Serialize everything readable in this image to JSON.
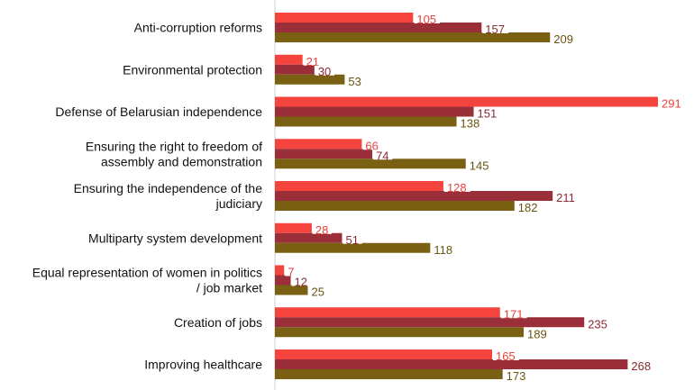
{
  "chart_data": {
    "type": "bar",
    "orientation": "horizontal",
    "categories": [
      [
        "Anti-corruption reforms"
      ],
      [
        "Environmental protection"
      ],
      [
        "Defense of Belarusian independence"
      ],
      [
        "Ensuring the right to freedom of",
        "assembly and demonstration"
      ],
      [
        "Ensuring the independence of the",
        "judiciary"
      ],
      [
        "Multiparty system development"
      ],
      [
        "Equal representation of women in politics",
        "/ job market"
      ],
      [
        "Creation of jobs"
      ],
      [
        "Improving healthcare"
      ]
    ],
    "series": [
      {
        "color": "#f5433d",
        "label_color": "#e8403a",
        "values": [
          105,
          21,
          291,
          66,
          128,
          28,
          7,
          171,
          165
        ]
      },
      {
        "color": "#9a2f3a",
        "label_color": "#8a2a33",
        "values": [
          157,
          30,
          151,
          74,
          211,
          51,
          12,
          235,
          268
        ]
      },
      {
        "color": "#7a6012",
        "label_color": "#6a5410",
        "values": [
          209,
          53,
          138,
          145,
          182,
          118,
          25,
          189,
          173
        ]
      }
    ],
    "xlim": [
      0,
      291
    ],
    "grid": false,
    "legend": "none"
  }
}
